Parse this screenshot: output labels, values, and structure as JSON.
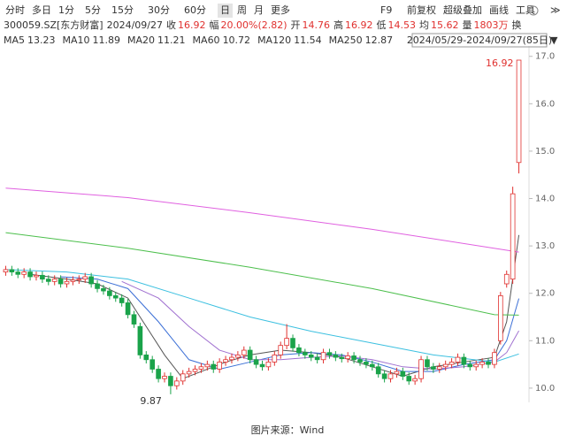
{
  "toolbar": {
    "left": [
      "分时",
      "多日",
      "1分",
      "5分",
      "15分",
      "30分",
      "60分",
      "日",
      "周",
      "月",
      "更多"
    ],
    "selected": 7,
    "right": [
      "F9",
      "前复权",
      "超级叠加",
      "画线",
      "工具"
    ]
  },
  "chart_data": {
    "type": "candlestick",
    "title": "300059.SZ[东方财富]",
    "date": "2024/09/27",
    "quote": {
      "close_label": "收",
      "change_label": "幅",
      "change": "20.00%(2.82)",
      "open_label": "开",
      "high_label": "高",
      "low_label": "低",
      "avg_label": "均",
      "avg": 15.62,
      "volume_label": "量",
      "volume": "1803万",
      "turnover_label": "换"
    },
    "range": "2024/05/29-2024/09/27(85日)",
    "up_color": "#e0302e",
    "down_color": "#1aa34a",
    "open": [
      12.45,
      12.5,
      12.45,
      12.4,
      12.45,
      12.35,
      12.38,
      12.3,
      12.25,
      12.3,
      12.2,
      12.25,
      12.28,
      12.3,
      12.35,
      12.2,
      12.1,
      12.05,
      11.95,
      11.9,
      11.8,
      11.55,
      11.3,
      10.7,
      10.6,
      10.4,
      10.2,
      10.25,
      10.05,
      10.15,
      10.3,
      10.35,
      10.4,
      10.45,
      10.5,
      10.4,
      10.55,
      10.6,
      10.65,
      10.7,
      10.8,
      10.6,
      10.5,
      10.45,
      10.55,
      10.7,
      10.9,
      11.05,
      10.85,
      10.75,
      10.7,
      10.65,
      10.6,
      10.75,
      10.7,
      10.65,
      10.62,
      10.68,
      10.6,
      10.55,
      10.5,
      10.45,
      10.3,
      10.2,
      10.3,
      10.35,
      10.25,
      10.15,
      10.2,
      10.6,
      10.45,
      10.4,
      10.45,
      10.5,
      10.55,
      10.65,
      10.5,
      10.45,
      10.5,
      10.55,
      10.5,
      11.0,
      12.2,
      12.3,
      14.76
    ],
    "high": [
      12.58,
      12.58,
      12.53,
      12.53,
      12.53,
      12.46,
      12.46,
      12.38,
      12.38,
      12.38,
      12.33,
      12.36,
      12.38,
      12.43,
      12.43,
      12.28,
      12.18,
      12.13,
      12.03,
      11.98,
      11.88,
      11.63,
      11.38,
      10.78,
      10.68,
      10.48,
      10.33,
      10.33,
      10.23,
      10.38,
      10.43,
      10.48,
      10.53,
      10.58,
      10.58,
      10.63,
      10.68,
      10.73,
      10.78,
      10.88,
      10.88,
      10.68,
      10.58,
      10.63,
      10.78,
      10.98,
      11.35,
      11.13,
      10.93,
      10.83,
      10.78,
      10.73,
      10.83,
      10.83,
      10.78,
      10.73,
      10.76,
      10.76,
      10.68,
      10.63,
      10.58,
      10.53,
      10.38,
      10.38,
      10.43,
      10.43,
      10.33,
      10.28,
      10.68,
      10.68,
      10.53,
      10.53,
      10.58,
      10.63,
      10.73,
      10.73,
      10.58,
      10.58,
      10.63,
      10.63,
      10.83,
      12.03,
      12.48,
      14.25,
      16.92
    ],
    "low": [
      12.37,
      12.37,
      12.32,
      12.32,
      12.27,
      12.27,
      12.22,
      12.17,
      12.17,
      12.12,
      12.12,
      12.17,
      12.2,
      12.22,
      12.12,
      12.02,
      11.97,
      11.87,
      11.82,
      11.72,
      11.47,
      11.27,
      10.62,
      10.52,
      10.32,
      10.12,
      10.12,
      9.87,
      9.97,
      10.07,
      10.22,
      10.27,
      10.32,
      10.37,
      10.32,
      10.32,
      10.47,
      10.52,
      10.57,
      10.62,
      10.52,
      10.42,
      10.37,
      10.37,
      10.47,
      10.62,
      10.82,
      10.77,
      10.67,
      10.62,
      10.57,
      10.52,
      10.52,
      10.62,
      10.57,
      10.54,
      10.54,
      10.52,
      10.47,
      10.42,
      10.37,
      10.22,
      10.12,
      10.12,
      10.22,
      10.17,
      10.07,
      10.07,
      10.12,
      10.37,
      10.32,
      10.32,
      10.37,
      10.42,
      10.47,
      10.42,
      10.37,
      10.37,
      10.42,
      10.42,
      10.42,
      10.92,
      12.12,
      12.2,
      14.53
    ],
    "close": [
      12.5,
      12.45,
      12.4,
      12.45,
      12.35,
      12.38,
      12.3,
      12.25,
      12.3,
      12.2,
      12.25,
      12.28,
      12.3,
      12.35,
      12.2,
      12.1,
      12.05,
      11.95,
      11.9,
      11.8,
      11.55,
      11.35,
      10.7,
      10.6,
      10.4,
      10.2,
      10.25,
      10.05,
      10.15,
      10.3,
      10.35,
      10.4,
      10.45,
      10.5,
      10.4,
      10.55,
      10.6,
      10.65,
      10.7,
      10.8,
      10.6,
      10.5,
      10.45,
      10.55,
      10.7,
      10.9,
      11.05,
      10.85,
      10.75,
      10.7,
      10.65,
      10.6,
      10.75,
      10.7,
      10.65,
      10.62,
      10.68,
      10.6,
      10.55,
      10.5,
      10.45,
      10.3,
      10.2,
      10.3,
      10.35,
      10.25,
      10.15,
      10.2,
      10.6,
      10.45,
      10.4,
      10.45,
      10.5,
      10.55,
      10.65,
      10.5,
      10.45,
      10.5,
      10.55,
      10.5,
      10.75,
      11.95,
      12.4,
      14.1,
      16.92
    ],
    "series": [
      {
        "name": "MA5",
        "color": "#555555",
        "x": [
          4,
          10,
          15,
          20,
          23,
          26,
          29,
          32,
          36,
          40,
          45,
          50,
          55,
          60,
          65,
          70,
          75,
          80,
          82,
          84
        ],
        "values": [
          12.4,
          12.3,
          12.2,
          11.9,
          11.3,
          10.7,
          10.2,
          10.35,
          10.55,
          10.7,
          10.8,
          10.75,
          10.65,
          10.45,
          10.25,
          10.45,
          10.55,
          10.65,
          11.4,
          13.23
        ]
      },
      {
        "name": "MA10",
        "color": "#3b6fd6",
        "x": [
          9,
          15,
          20,
          25,
          30,
          35,
          40,
          45,
          50,
          55,
          60,
          65,
          70,
          75,
          80,
          82,
          84
        ],
        "values": [
          12.35,
          12.3,
          12.1,
          11.4,
          10.6,
          10.4,
          10.55,
          10.7,
          10.75,
          10.7,
          10.55,
          10.35,
          10.35,
          10.5,
          10.6,
          11.0,
          11.89
        ]
      },
      {
        "name": "MA20",
        "color": "#a070d0",
        "x": [
          19,
          25,
          30,
          35,
          40,
          45,
          50,
          55,
          60,
          65,
          70,
          75,
          80,
          82,
          84
        ],
        "values": [
          12.25,
          11.9,
          11.3,
          10.8,
          10.6,
          10.6,
          10.65,
          10.68,
          10.6,
          10.45,
          10.4,
          10.45,
          10.55,
          10.75,
          11.21
        ]
      },
      {
        "name": "MA60",
        "color": "#3cc0e0",
        "x": [
          0,
          10,
          20,
          30,
          40,
          50,
          60,
          70,
          80,
          84
        ],
        "values": [
          12.5,
          12.45,
          12.3,
          11.9,
          11.5,
          11.2,
          10.95,
          10.7,
          10.55,
          10.72
        ]
      },
      {
        "name": "MA120",
        "color": "#4cbf4c",
        "x": [
          0,
          20,
          40,
          60,
          80,
          84
        ],
        "values": [
          13.28,
          12.95,
          12.55,
          12.1,
          11.55,
          11.54
        ]
      },
      {
        "name": "MA250",
        "color": "#e060e0",
        "x": [
          0,
          20,
          40,
          60,
          84
        ],
        "values": [
          14.22,
          14.02,
          13.7,
          13.35,
          12.87
        ]
      }
    ],
    "xlim": [
      -0.5,
      84.5
    ],
    "ylim": [
      9.7,
      17.2
    ],
    "yticks": [
      {
        "value": 10,
        "label": "10.0"
      },
      {
        "value": 11,
        "label": "11.0"
      },
      {
        "value": 12,
        "label": "12.0"
      },
      {
        "value": 13,
        "label": "13.0"
      },
      {
        "value": 14,
        "label": "14.0"
      },
      {
        "value": 15,
        "label": "15.0"
      },
      {
        "value": 16,
        "label": "16.0"
      },
      {
        "value": 17,
        "label": "17.0"
      }
    ]
  },
  "caption": "图片来源：Wind"
}
